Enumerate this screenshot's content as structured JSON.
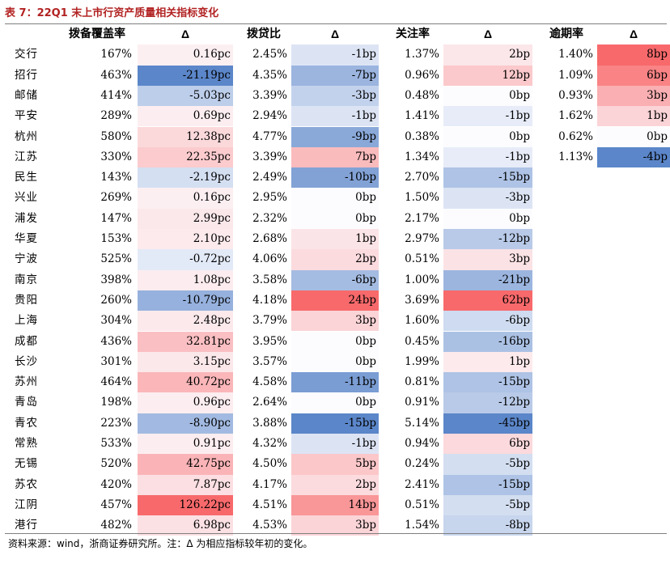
{
  "title": "表 7：22Q1 末上市行资产质量相关指标变化",
  "headers": {
    "coverage": "拨备覆盖率",
    "coverage_delta": "Δ",
    "provision": "拨贷比",
    "provision_delta": "Δ",
    "attention": "关注率",
    "attention_delta": "Δ",
    "overdue": "逾期率",
    "overdue_delta": "Δ"
  },
  "colors": {
    "neg_strong": "#5b86c9",
    "pos_strong": "#f8696b",
    "title": "#b22222"
  },
  "rows": [
    {
      "bank": "交行",
      "cov": "167%",
      "cov_d": "0.16pc",
      "cov_dv": 0.16,
      "prov": "2.45%",
      "prov_d": "-1bp",
      "prov_dv": -1,
      "att": "1.37%",
      "att_d": "2bp",
      "att_dv": 2,
      "ovd": "1.40%",
      "ovd_d": "8bp",
      "ovd_dv": 8
    },
    {
      "bank": "招行",
      "cov": "463%",
      "cov_d": "-21.19pc",
      "cov_dv": -21.19,
      "prov": "4.35%",
      "prov_d": "-7bp",
      "prov_dv": -7,
      "att": "0.96%",
      "att_d": "12bp",
      "att_dv": 12,
      "ovd": "1.09%",
      "ovd_d": "6bp",
      "ovd_dv": 6
    },
    {
      "bank": "邮储",
      "cov": "414%",
      "cov_d": "-5.03pc",
      "cov_dv": -5.03,
      "prov": "3.39%",
      "prov_d": "-3bp",
      "prov_dv": -3,
      "att": "0.48%",
      "att_d": "0bp",
      "att_dv": 0,
      "ovd": "0.93%",
      "ovd_d": "3bp",
      "ovd_dv": 3
    },
    {
      "bank": "平安",
      "cov": "289%",
      "cov_d": "0.69pc",
      "cov_dv": 0.69,
      "prov": "2.94%",
      "prov_d": "-1bp",
      "prov_dv": -1,
      "att": "1.41%",
      "att_d": "-1bp",
      "att_dv": -1,
      "ovd": "1.62%",
      "ovd_d": "1bp",
      "ovd_dv": 1
    },
    {
      "bank": "杭州",
      "cov": "580%",
      "cov_d": "12.38pc",
      "cov_dv": 12.38,
      "prov": "4.77%",
      "prov_d": "-9bp",
      "prov_dv": -9,
      "att": "0.38%",
      "att_d": "0bp",
      "att_dv": 0,
      "ovd": "0.62%",
      "ovd_d": "0bp",
      "ovd_dv": 0
    },
    {
      "bank": "江苏",
      "cov": "330%",
      "cov_d": "22.35pc",
      "cov_dv": 22.35,
      "prov": "3.39%",
      "prov_d": "7bp",
      "prov_dv": 7,
      "att": "1.34%",
      "att_d": "-1bp",
      "att_dv": -1,
      "ovd": "1.13%",
      "ovd_d": "-4bp",
      "ovd_dv": -4
    },
    {
      "bank": "民生",
      "cov": "143%",
      "cov_d": "-2.19pc",
      "cov_dv": -2.19,
      "prov": "2.49%",
      "prov_d": "-10bp",
      "prov_dv": -10,
      "att": "2.70%",
      "att_d": "-15bp",
      "att_dv": -15,
      "ovd": "",
      "ovd_d": "",
      "ovd_dv": null
    },
    {
      "bank": "兴业",
      "cov": "269%",
      "cov_d": "0.16pc",
      "cov_dv": 0.16,
      "prov": "2.95%",
      "prov_d": "0bp",
      "prov_dv": 0,
      "att": "1.50%",
      "att_d": "-3bp",
      "att_dv": -3,
      "ovd": "",
      "ovd_d": "",
      "ovd_dv": null
    },
    {
      "bank": "浦发",
      "cov": "147%",
      "cov_d": "2.99pc",
      "cov_dv": 2.99,
      "prov": "2.32%",
      "prov_d": "0bp",
      "prov_dv": 0,
      "att": "2.17%",
      "att_d": "0bp",
      "att_dv": 0,
      "ovd": "",
      "ovd_d": "",
      "ovd_dv": null
    },
    {
      "bank": "华夏",
      "cov": "153%",
      "cov_d": "2.10pc",
      "cov_dv": 2.1,
      "prov": "2.68%",
      "prov_d": "1bp",
      "prov_dv": 1,
      "att": "2.97%",
      "att_d": "-12bp",
      "att_dv": -12,
      "ovd": "",
      "ovd_d": "",
      "ovd_dv": null
    },
    {
      "bank": "宁波",
      "cov": "525%",
      "cov_d": "-0.72pc",
      "cov_dv": -0.72,
      "prov": "4.06%",
      "prov_d": "2bp",
      "prov_dv": 2,
      "att": "0.51%",
      "att_d": "3bp",
      "att_dv": 3,
      "ovd": "",
      "ovd_d": "",
      "ovd_dv": null
    },
    {
      "bank": "南京",
      "cov": "398%",
      "cov_d": "1.08pc",
      "cov_dv": 1.08,
      "prov": "3.58%",
      "prov_d": "-6bp",
      "prov_dv": -6,
      "att": "1.00%",
      "att_d": "-21bp",
      "att_dv": -21,
      "ovd": "",
      "ovd_d": "",
      "ovd_dv": null
    },
    {
      "bank": "贵阳",
      "cov": "260%",
      "cov_d": "-10.79pc",
      "cov_dv": -10.79,
      "prov": "4.18%",
      "prov_d": "24bp",
      "prov_dv": 24,
      "att": "3.69%",
      "att_d": "62bp",
      "att_dv": 62,
      "ovd": "",
      "ovd_d": "",
      "ovd_dv": null
    },
    {
      "bank": "上海",
      "cov": "304%",
      "cov_d": "2.48pc",
      "cov_dv": 2.48,
      "prov": "3.79%",
      "prov_d": "3bp",
      "prov_dv": 3,
      "att": "1.60%",
      "att_d": "-6bp",
      "att_dv": -6,
      "ovd": "",
      "ovd_d": "",
      "ovd_dv": null
    },
    {
      "bank": "成都",
      "cov": "436%",
      "cov_d": "32.81pc",
      "cov_dv": 32.81,
      "prov": "3.95%",
      "prov_d": "0bp",
      "prov_dv": 0,
      "att": "0.45%",
      "att_d": "-16bp",
      "att_dv": -16,
      "ovd": "",
      "ovd_d": "",
      "ovd_dv": null
    },
    {
      "bank": "长沙",
      "cov": "301%",
      "cov_d": "3.15pc",
      "cov_dv": 3.15,
      "prov": "3.57%",
      "prov_d": "0bp",
      "prov_dv": 0,
      "att": "1.99%",
      "att_d": "1bp",
      "att_dv": 1,
      "ovd": "",
      "ovd_d": "",
      "ovd_dv": null
    },
    {
      "bank": "苏州",
      "cov": "464%",
      "cov_d": "40.72pc",
      "cov_dv": 40.72,
      "prov": "4.58%",
      "prov_d": "-11bp",
      "prov_dv": -11,
      "att": "0.81%",
      "att_d": "-15bp",
      "att_dv": -15,
      "ovd": "",
      "ovd_d": "",
      "ovd_dv": null
    },
    {
      "bank": "青岛",
      "cov": "198%",
      "cov_d": "0.96pc",
      "cov_dv": 0.96,
      "prov": "2.64%",
      "prov_d": "0bp",
      "prov_dv": 0,
      "att": "0.91%",
      "att_d": "-12bp",
      "att_dv": -12,
      "ovd": "",
      "ovd_d": "",
      "ovd_dv": null
    },
    {
      "bank": "青农",
      "cov": "223%",
      "cov_d": "-8.90pc",
      "cov_dv": -8.9,
      "prov": "3.88%",
      "prov_d": "-15bp",
      "prov_dv": -15,
      "att": "5.14%",
      "att_d": "-45bp",
      "att_dv": -45,
      "ovd": "",
      "ovd_d": "",
      "ovd_dv": null
    },
    {
      "bank": "常熟",
      "cov": "533%",
      "cov_d": "0.91pc",
      "cov_dv": 0.91,
      "prov": "4.32%",
      "prov_d": "-1bp",
      "prov_dv": -1,
      "att": "0.94%",
      "att_d": "6bp",
      "att_dv": 6,
      "ovd": "",
      "ovd_d": "",
      "ovd_dv": null
    },
    {
      "bank": "无锡",
      "cov": "520%",
      "cov_d": "42.75pc",
      "cov_dv": 42.75,
      "prov": "4.50%",
      "prov_d": "5bp",
      "prov_dv": 5,
      "att": "0.24%",
      "att_d": "-5bp",
      "att_dv": -5,
      "ovd": "",
      "ovd_d": "",
      "ovd_dv": null
    },
    {
      "bank": "苏农",
      "cov": "420%",
      "cov_d": "7.87pc",
      "cov_dv": 7.87,
      "prov": "4.17%",
      "prov_d": "2bp",
      "prov_dv": 2,
      "att": "2.41%",
      "att_d": "-15bp",
      "att_dv": -15,
      "ovd": "",
      "ovd_d": "",
      "ovd_dv": null
    },
    {
      "bank": "江阴",
      "cov": "457%",
      "cov_d": "126.22pc",
      "cov_dv": 126.22,
      "prov": "4.51%",
      "prov_d": "14bp",
      "prov_dv": 14,
      "att": "0.51%",
      "att_d": "-5bp",
      "att_dv": -5,
      "ovd": "",
      "ovd_d": "",
      "ovd_dv": null
    },
    {
      "bank": "港行",
      "cov": "482%",
      "cov_d": "6.98pc",
      "cov_dv": 6.98,
      "prov": "4.53%",
      "prov_d": "3bp",
      "prov_dv": 3,
      "att": "1.54%",
      "att_d": "-8bp",
      "att_dv": -8,
      "ovd": "",
      "ovd_d": "",
      "ovd_dv": null
    }
  ],
  "footnote": "资料来源：wind，浙商证券研究所。注：Δ 为相应指标较年初的变化。"
}
